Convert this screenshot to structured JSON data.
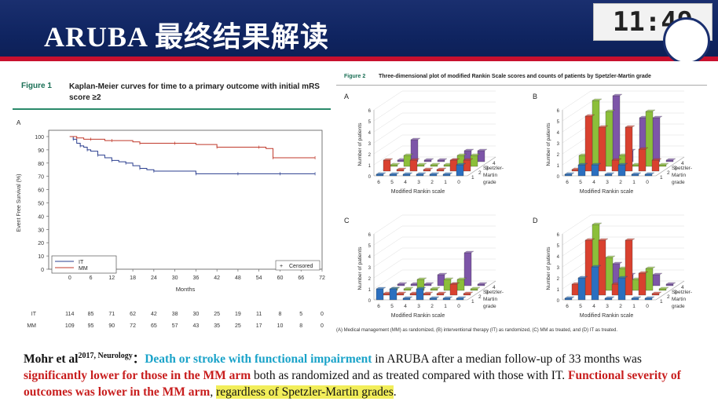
{
  "clock": "11:49",
  "slide_title": "ARUBA 最终结果解读",
  "fig1": {
    "label": "Figure 1",
    "caption": "Kaplan-Meier curves for time to a primary outcome with initial mRS score ≥2",
    "panel": "A",
    "ylabel": "Event Free Survival (%)",
    "xlabel": "Months",
    "censored_label": "Censored",
    "at_risk_rows": [
      {
        "name": "IT",
        "values": [
          "114",
          "85",
          "71",
          "62",
          "42",
          "38",
          "30",
          "25",
          "19",
          "11",
          "8",
          "5",
          "0"
        ]
      },
      {
        "name": "MM",
        "values": [
          "109",
          "95",
          "90",
          "72",
          "65",
          "57",
          "43",
          "35",
          "25",
          "17",
          "10",
          "8",
          "0"
        ]
      }
    ]
  },
  "fig2": {
    "label": "Figure 2",
    "caption": "Three-dimensional plot of modified Rankin Scale scores and counts of patients by Spetzler-Martin grade",
    "footnote": "(A) Medical management (MM) as randomized, (B) interventional therapy (IT) as randomized, (C) MM as treated, and (D) IT as treated.",
    "ylabel": "Number of patients",
    "xlabel": "Modified Rankin scale",
    "zlabel_1": "Spetzler-",
    "zlabel_2": "Martin",
    "zlabel_3": "grade"
  },
  "bottom": {
    "author": "Mohr et al",
    "sup": "2017, Neurology",
    "colon": "：",
    "part1": "Death or stroke with functional impairment",
    "part2": " in ARUBA after a median follow-up of 33 months was ",
    "part3": "significantly lower for those in the MM arm",
    "part4": " both as randomized and as treated compared with those with IT. ",
    "part5": "Functional severity of outcomes was lower in the MM arm",
    "part6": ", ",
    "part7": "regardless of Spetzler-Martin grades",
    "part8": "."
  },
  "chart_data": [
    {
      "type": "line",
      "title": "Kaplan-Meier curves for time to a primary outcome with initial mRS score ≥2",
      "xlabel": "Months",
      "ylabel": "Event Free Survival (%)",
      "xlim": [
        -6,
        72
      ],
      "ylim": [
        0,
        100
      ],
      "xticks": [
        0,
        6,
        12,
        18,
        24,
        30,
        36,
        42,
        48,
        54,
        60,
        66,
        72
      ],
      "yticks": [
        0,
        10,
        20,
        30,
        40,
        50,
        60,
        70,
        80,
        90,
        100
      ],
      "legend": "bottom-left",
      "series": [
        {
          "name": "IT",
          "color": "#2b3f8f",
          "x": [
            0,
            1,
            2,
            3,
            4,
            5,
            6,
            8,
            10,
            12,
            14,
            16,
            18,
            20,
            22,
            24,
            30,
            36,
            42,
            48,
            54,
            60,
            66,
            70
          ],
          "y": [
            100,
            98,
            95,
            93,
            92,
            90,
            89,
            86,
            84,
            82,
            81,
            80,
            78,
            76,
            75,
            74,
            74,
            72,
            72,
            72,
            72,
            72,
            72,
            72
          ]
        },
        {
          "name": "MM",
          "color": "#c0392b",
          "x": [
            0,
            2,
            4,
            6,
            10,
            12,
            18,
            20,
            24,
            30,
            36,
            42,
            48,
            54,
            56,
            58,
            66,
            70
          ],
          "y": [
            100,
            99,
            98,
            98,
            97,
            97,
            96,
            95,
            95,
            95,
            94,
            92,
            92,
            92,
            91,
            84,
            84,
            84
          ]
        }
      ]
    },
    {
      "type": "bar",
      "title": "A",
      "categories": [
        "6",
        "5",
        "4",
        "3",
        "2",
        "1",
        "0"
      ],
      "series": [
        {
          "name": "1",
          "values": [
            0,
            0,
            0,
            0,
            0,
            0,
            1
          ]
        },
        {
          "name": "2",
          "values": [
            1,
            0,
            1,
            0,
            0,
            1,
            1
          ]
        },
        {
          "name": "3",
          "values": [
            0,
            1,
            0,
            0,
            0,
            1,
            1
          ]
        },
        {
          "name": "4",
          "values": [
            0,
            2,
            0,
            0,
            0,
            1,
            1
          ]
        }
      ],
      "zlabel": "Spetzler-Martin grade",
      "ylim": [
        0,
        6
      ]
    },
    {
      "type": "bar",
      "title": "B",
      "categories": [
        "6",
        "5",
        "4",
        "3",
        "2",
        "1",
        "0"
      ],
      "series": [
        {
          "name": "1",
          "values": [
            0,
            1,
            1,
            0,
            1,
            0,
            0
          ]
        },
        {
          "name": "2",
          "values": [
            0,
            5,
            4,
            1,
            4,
            2,
            1
          ]
        },
        {
          "name": "3",
          "values": [
            1,
            6,
            5,
            1,
            0,
            5,
            0
          ]
        },
        {
          "name": "4",
          "values": [
            0,
            2,
            6,
            1,
            4,
            4,
            0
          ]
        }
      ],
      "zlabel": "Spetzler-Martin grade",
      "ylim": [
        0,
        6
      ]
    },
    {
      "type": "bar",
      "title": "C",
      "categories": [
        "6",
        "5",
        "4",
        "3",
        "2",
        "1",
        "0"
      ],
      "series": [
        {
          "name": "1",
          "values": [
            1,
            1,
            0,
            1,
            0,
            0,
            0
          ]
        },
        {
          "name": "2",
          "values": [
            0,
            0,
            0,
            0,
            0,
            1,
            0
          ]
        },
        {
          "name": "3",
          "values": [
            0,
            0,
            1,
            0,
            1,
            1,
            0
          ]
        },
        {
          "name": "4",
          "values": [
            0,
            0,
            0,
            1,
            0,
            3,
            0
          ]
        }
      ],
      "zlabel": "Spetzler-Martin grade",
      "ylim": [
        0,
        6
      ]
    },
    {
      "type": "bar",
      "title": "D",
      "categories": [
        "6",
        "5",
        "4",
        "3",
        "2",
        "1",
        "0"
      ],
      "series": [
        {
          "name": "1",
          "values": [
            0,
            2,
            3,
            0,
            2,
            0,
            0
          ]
        },
        {
          "name": "2",
          "values": [
            1,
            5,
            5,
            1,
            5,
            2,
            0
          ]
        },
        {
          "name": "3",
          "values": [
            1,
            6,
            3,
            2,
            1,
            2,
            0
          ]
        },
        {
          "name": "4",
          "values": [
            0,
            1,
            2,
            1,
            1,
            1,
            0
          ]
        }
      ],
      "zlabel": "Spetzler-Martin grade",
      "ylim": [
        0,
        6
      ]
    }
  ]
}
